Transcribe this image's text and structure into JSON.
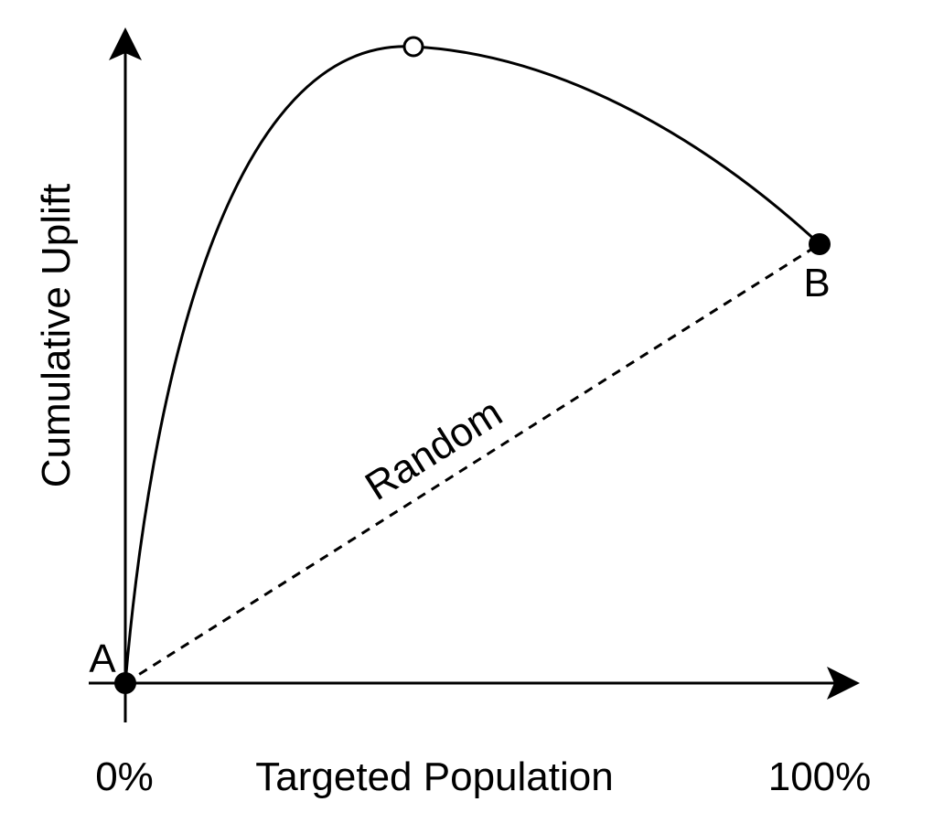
{
  "axes": {
    "y_label": "Cumulative Uplift",
    "x_label": "Targeted Population",
    "x_start": "0%",
    "x_end": "100%"
  },
  "points": {
    "a": "A",
    "b": "B"
  },
  "baseline": {
    "label": "Random"
  }
}
